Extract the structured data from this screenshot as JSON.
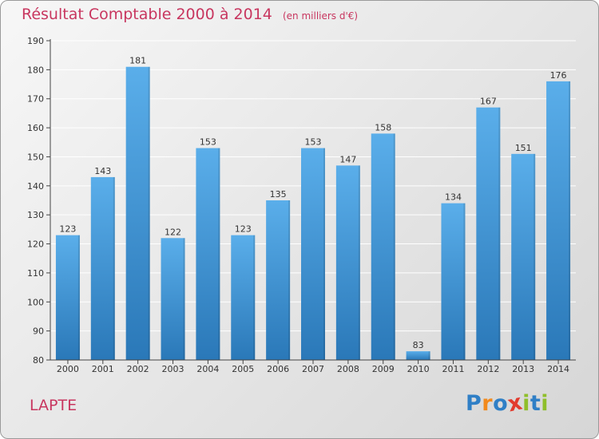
{
  "title": "Résultat Comptable 2000 à 2014",
  "unit_label": "(en milliers d'€)",
  "commune": "LAPTE",
  "brand": {
    "name": "Proxiti",
    "letters": [
      {
        "char": "P",
        "color": "#2f7fc6"
      },
      {
        "char": "r",
        "color": "#f28a1c"
      },
      {
        "char": "o",
        "color": "#2f7fc6"
      },
      {
        "char": "x",
        "color": "#e23b2e"
      },
      {
        "char": "i",
        "color": "#8fbf2a"
      },
      {
        "char": "t",
        "color": "#2f7fc6"
      },
      {
        "char": "i",
        "color": "#8fbf2a"
      }
    ]
  },
  "colors": {
    "bar_top": "#5aaeea",
    "bar_bottom": "#2a78b8",
    "title": "#c8365f",
    "axis": "#444444",
    "grid": "#ffffff"
  },
  "chart_data": {
    "type": "bar",
    "title": "Résultat Comptable 2000 à 2014",
    "subtitle": "(en milliers d'€)",
    "categories": [
      "2000",
      "2001",
      "2002",
      "2003",
      "2004",
      "2005",
      "2006",
      "2007",
      "2008",
      "2009",
      "2010",
      "2011",
      "2012",
      "2013",
      "2014"
    ],
    "values": [
      123,
      143,
      181,
      122,
      153,
      123,
      135,
      153,
      147,
      158,
      83,
      134,
      167,
      151,
      176
    ],
    "data_labels": [
      "123",
      "143",
      "181",
      "122",
      "153",
      "123",
      "135",
      "153",
      "147",
      "158",
      "83",
      "134",
      "167",
      "151",
      "176"
    ],
    "ylim": [
      80,
      190
    ],
    "yticks": [
      80,
      90,
      100,
      110,
      120,
      130,
      140,
      150,
      160,
      170,
      180,
      190
    ],
    "ytick_labels": [
      "80",
      "90",
      "100",
      "110",
      "120",
      "130",
      "140",
      "150",
      "160",
      "170",
      "180",
      "190"
    ],
    "xlabel": "",
    "ylabel": "",
    "grid": true
  }
}
